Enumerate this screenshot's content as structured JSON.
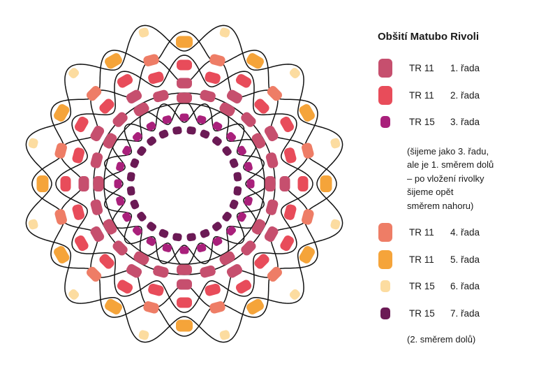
{
  "legend": {
    "title": "Obšití Matubo Rivoli",
    "rows": [
      {
        "bead": "TR 11",
        "row": "1. řada",
        "color": "#c64f6e",
        "shape": "bead-11"
      },
      {
        "bead": "TR 11",
        "row": "2. řada",
        "color": "#e84c5a",
        "shape": "bead-11"
      },
      {
        "bead": "TR 15",
        "row": "3. řada",
        "color": "#a9207b",
        "shape": "bead-15"
      },
      {
        "bead": "TR 11",
        "row": "4. řada",
        "color": "#ee7d66",
        "shape": "bead-11"
      },
      {
        "bead": "TR 11",
        "row": "5. řada",
        "color": "#f5a43a",
        "shape": "bead-11"
      },
      {
        "bead": "TR 15",
        "row": "6. řada",
        "color": "#fcdca0",
        "shape": "bead-15"
      },
      {
        "bead": "TR 15",
        "row": "7. řada",
        "color": "#6b1a55",
        "shape": "bead-15"
      }
    ],
    "note_row3": [
      "(šijeme jako 3. řadu,",
      "ale je 1. směrem dolů",
      "– po vložení rivolky",
      "šijeme opět",
      "směrem nahoru)"
    ],
    "note_row7": "(2. směrem dolů)"
  }
}
